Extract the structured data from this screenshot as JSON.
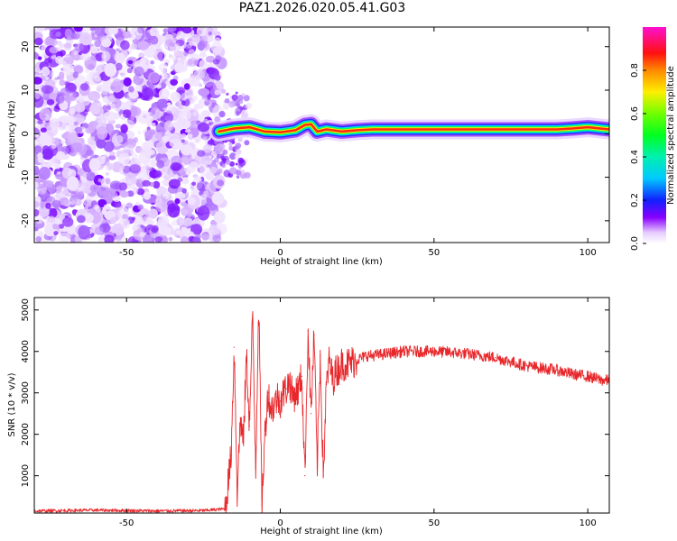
{
  "title": "PAZ1.2026.020.05.41.G03",
  "chart_data": [
    {
      "type": "heatmap",
      "title": "PAZ1.2026.020.05.41.G03",
      "xlabel": "Height of straight line (km)",
      "ylabel": "Frequency (Hz)",
      "xlim": [
        -80,
        107
      ],
      "ylim": [
        -25,
        24.5
      ],
      "xticks": [
        -50,
        0,
        50,
        100
      ],
      "xtick_labels": [
        "-50",
        "0",
        "50",
        "100"
      ],
      "yticks": [
        -20,
        -10,
        0,
        10,
        20
      ],
      "ytick_labels": [
        "-20",
        "-10",
        "0",
        "10",
        "20"
      ],
      "noise_region_x": [
        -80,
        -19
      ],
      "signal_track": {
        "x": [
          -20,
          -15,
          -10,
          -5,
          0,
          5,
          8,
          10,
          12,
          15,
          20,
          25,
          30,
          40,
          50,
          60,
          70,
          80,
          90,
          95,
          100,
          107
        ],
        "frequency": [
          0.5,
          1.2,
          1.5,
          0.5,
          0.3,
          0.8,
          2.0,
          2.2,
          0.5,
          1.0,
          0.5,
          0.8,
          1.0,
          1.0,
          1.0,
          1.0,
          1.0,
          1.0,
          1.0,
          1.2,
          1.5,
          1.0
        ]
      },
      "colorbar": {
        "label": "Normalized spectral amplitude",
        "min": 0.0,
        "max": 1.0,
        "ticks": [
          0.0,
          0.2,
          0.4,
          0.6,
          0.8
        ],
        "tick_labels": [
          "0.0",
          "0.2",
          "0.4",
          "0.6",
          "0.8"
        ]
      }
    },
    {
      "type": "line",
      "xlabel": "Height of straight line (km)",
      "ylabel": "SNR (10 * v/v)",
      "xlim": [
        -80,
        107
      ],
      "ylim": [
        100,
        5300
      ],
      "xticks": [
        -50,
        0,
        50,
        100
      ],
      "xtick_labels": [
        "-50",
        "0",
        "50",
        "100"
      ],
      "yticks": [
        1000,
        2000,
        3000,
        4000,
        5000
      ],
      "ytick_labels": [
        "1000",
        "2000",
        "3000",
        "4000",
        "5000"
      ],
      "color": "#e8272b",
      "series": [
        {
          "name": "SNR",
          "x": [
            -80,
            -60,
            -40,
            -25,
            -18,
            -17,
            -16,
            -15,
            -14,
            -13,
            -12,
            -11,
            -10,
            -9,
            -8,
            -7,
            -6,
            -5,
            -4,
            -3,
            -2,
            -1,
            0,
            1,
            2,
            3,
            4,
            5,
            6,
            7,
            8,
            9,
            10,
            11,
            12,
            13,
            14,
            15,
            16,
            17,
            18,
            19,
            20,
            22,
            25,
            28,
            30,
            35,
            40,
            45,
            50,
            55,
            60,
            65,
            70,
            75,
            80,
            85,
            90,
            95,
            100,
            105,
            107
          ],
          "y": [
            150,
            170,
            150,
            160,
            200,
            800,
            1500,
            4100,
            600,
            2400,
            1800,
            3900,
            2200,
            4900,
            1200,
            5300,
            300,
            2000,
            3000,
            2600,
            2700,
            2900,
            2800,
            3000,
            3100,
            3300,
            2900,
            3000,
            3100,
            3400,
            1000,
            4500,
            2500,
            4400,
            1200,
            3900,
            1000,
            3200,
            3800,
            3300,
            3500,
            3600,
            3700,
            3700,
            3800,
            3900,
            3900,
            3950,
            4000,
            4000,
            4000,
            3980,
            3950,
            3900,
            3850,
            3750,
            3650,
            3600,
            3550,
            3450,
            3400,
            3300,
            3300
          ]
        }
      ]
    }
  ]
}
